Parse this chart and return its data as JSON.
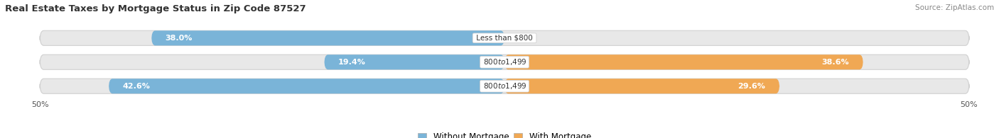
{
  "title": "Real Estate Taxes by Mortgage Status in Zip Code 87527",
  "source": "Source: ZipAtlas.com",
  "rows": [
    {
      "label": "Less than $800",
      "without_mortgage": 38.0,
      "with_mortgage": 0.0
    },
    {
      "label": "$800 to $1,499",
      "without_mortgage": 19.4,
      "with_mortgage": 38.6
    },
    {
      "label": "$800 to $1,499",
      "without_mortgage": 42.6,
      "with_mortgage": 29.6
    }
  ],
  "xlim": [
    -50.0,
    50.0
  ],
  "color_without": "#7ab4d8",
  "color_with": "#f0a854",
  "color_with_light": "#f5cfa0",
  "bar_bg_color": "#e8e8e8",
  "bar_bg_outline": "#d0d0d0",
  "bar_height": 0.62,
  "label_fontsize": 8.0,
  "title_fontsize": 9.5,
  "legend_fontsize": 8.5,
  "source_fontsize": 7.5
}
